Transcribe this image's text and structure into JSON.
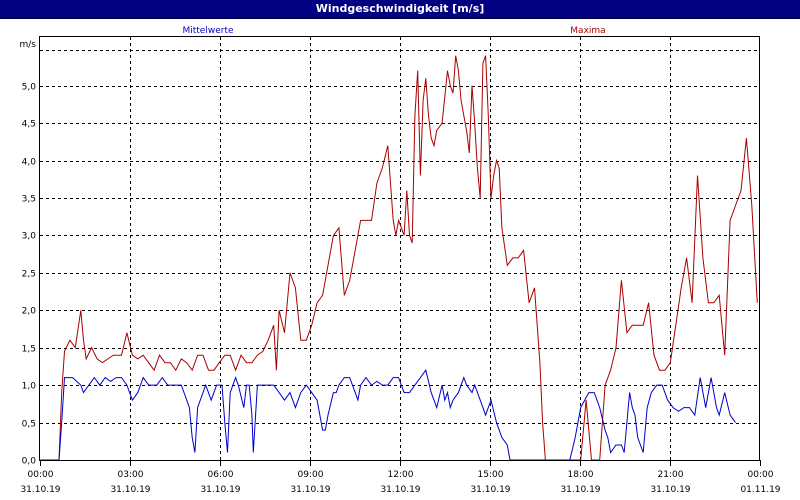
{
  "window": {
    "title": "Windgeschwindigkeit [m/s]"
  },
  "chart_data": {
    "type": "line",
    "title": "Windgeschwindigkeit [m/s]",
    "ylabel": "m/s",
    "xlabel": "",
    "ylim": [
      0,
      5.65
    ],
    "yticks": [
      {
        "v": 0.0,
        "label": "0,0"
      },
      {
        "v": 0.5,
        "label": "0,5"
      },
      {
        "v": 1.0,
        "label": "1,0"
      },
      {
        "v": 1.5,
        "label": "1,5"
      },
      {
        "v": 2.0,
        "label": "2,0"
      },
      {
        "v": 2.5,
        "label": "2,5"
      },
      {
        "v": 3.0,
        "label": "3,0"
      },
      {
        "v": 3.5,
        "label": "3,5"
      },
      {
        "v": 4.0,
        "label": "4,0"
      },
      {
        "v": 4.5,
        "label": "4,5"
      },
      {
        "v": 5.0,
        "label": "5,0"
      }
    ],
    "xlim_hours": [
      0,
      24
    ],
    "xticks": [
      {
        "h": 0,
        "time": "00:00",
        "date": "31.10.19"
      },
      {
        "h": 3,
        "time": "03:00",
        "date": "31.10.19"
      },
      {
        "h": 6,
        "time": "06:00",
        "date": "31.10.19"
      },
      {
        "h": 9,
        "time": "09:00",
        "date": "31.10.19"
      },
      {
        "h": 12,
        "time": "12:00",
        "date": "31.10.19"
      },
      {
        "h": 15,
        "time": "15:00",
        "date": "31.10.19"
      },
      {
        "h": 18,
        "time": "18:00",
        "date": "31.10.19"
      },
      {
        "h": 21,
        "time": "21:00",
        "date": "31.10.19"
      },
      {
        "h": 24,
        "time": "00:00",
        "date": "01.11.19"
      }
    ],
    "grid": true,
    "series": [
      {
        "name": "Mittelwerte",
        "color": "#0000cc",
        "points": [
          [
            0,
            0
          ],
          [
            0.7,
            0
          ],
          [
            0.8,
            0.5
          ],
          [
            0.9,
            1.1
          ],
          [
            1.2,
            1.1
          ],
          [
            1.5,
            1.0
          ],
          [
            1.6,
            0.9
          ],
          [
            1.8,
            1.0
          ],
          [
            2.0,
            1.1
          ],
          [
            2.2,
            1.0
          ],
          [
            2.4,
            1.1
          ],
          [
            2.6,
            1.05
          ],
          [
            2.8,
            1.1
          ],
          [
            3.0,
            1.1
          ],
          [
            3.2,
            1.0
          ],
          [
            3.4,
            0.8
          ],
          [
            3.6,
            0.9
          ],
          [
            3.8,
            1.1
          ],
          [
            4.0,
            1.0
          ],
          [
            4.3,
            1.0
          ],
          [
            4.5,
            1.1
          ],
          [
            4.7,
            1.0
          ],
          [
            5.0,
            1.0
          ],
          [
            5.2,
            1.0
          ],
          [
            5.4,
            0.8
          ],
          [
            5.5,
            0.7
          ],
          [
            5.6,
            0.3
          ],
          [
            5.7,
            0.1
          ],
          [
            5.8,
            0.7
          ],
          [
            6.0,
            0.9
          ],
          [
            6.1,
            1.0
          ],
          [
            6.3,
            0.8
          ],
          [
            6.5,
            1.0
          ],
          [
            6.7,
            1.0
          ],
          [
            6.8,
            0.5
          ],
          [
            6.9,
            0.1
          ],
          [
            7.0,
            0.9
          ],
          [
            7.2,
            1.1
          ],
          [
            7.3,
            1.0
          ],
          [
            7.5,
            0.7
          ],
          [
            7.6,
            1.0
          ],
          [
            7.7,
            1.0
          ],
          [
            7.8,
            0.6
          ],
          [
            7.85,
            0.1
          ],
          [
            8.0,
            1.0
          ],
          [
            8.3,
            1.0
          ],
          [
            8.6,
            1.0
          ],
          [
            8.8,
            0.9
          ],
          [
            9.0,
            0.8
          ],
          [
            9.2,
            0.9
          ],
          [
            9.4,
            0.7
          ],
          [
            9.6,
            0.9
          ],
          [
            9.8,
            1.0
          ],
          [
            10.0,
            0.9
          ],
          [
            10.2,
            0.8
          ],
          [
            10.4,
            0.4
          ],
          [
            10.5,
            0.4
          ],
          [
            10.6,
            0.6
          ],
          [
            10.8,
            0.9
          ],
          [
            10.9,
            0.9
          ],
          [
            11.0,
            1.0
          ],
          [
            11.2,
            1.1
          ],
          [
            11.4,
            1.1
          ],
          [
            11.6,
            0.9
          ],
          [
            11.7,
            0.8
          ],
          [
            11.8,
            1.0
          ],
          [
            12.0,
            1.1
          ],
          [
            12.2,
            1.0
          ],
          [
            12.4,
            1.05
          ],
          [
            12.6,
            1.0
          ],
          [
            12.8,
            1.0
          ],
          [
            13.0,
            1.1
          ],
          [
            13.2,
            1.1
          ],
          [
            13.4,
            0.9
          ],
          [
            13.6,
            0.9
          ],
          [
            13.8,
            1.0
          ],
          [
            14.0,
            1.1
          ],
          [
            14.2,
            1.2
          ],
          [
            14.4,
            0.9
          ],
          [
            14.5,
            0.8
          ],
          [
            14.6,
            0.7
          ],
          [
            14.8,
            1.0
          ],
          [
            14.9,
            0.8
          ],
          [
            15.0,
            0.9
          ],
          [
            15.1,
            0.7
          ],
          [
            15.2,
            0.8
          ],
          [
            15.4,
            0.9
          ],
          [
            15.6,
            1.1
          ],
          [
            15.7,
            1.0
          ],
          [
            15.9,
            0.9
          ],
          [
            16.0,
            1.0
          ],
          [
            16.2,
            0.8
          ],
          [
            16.4,
            0.6
          ],
          [
            16.5,
            0.7
          ],
          [
            16.6,
            0.8
          ],
          [
            16.8,
            0.5
          ],
          [
            17.0,
            0.3
          ],
          [
            17.2,
            0.2
          ],
          [
            17.3,
            0
          ],
          [
            18.0,
            0
          ],
          [
            19.0,
            0
          ],
          [
            19.3,
            0
          ],
          [
            19.5,
            0
          ],
          [
            19.7,
            0.3
          ],
          [
            19.9,
            0.7
          ],
          [
            20.2,
            0.9
          ],
          [
            20.4,
            0.9
          ],
          [
            20.6,
            0.7
          ],
          [
            20.8,
            0.4
          ],
          [
            20.9,
            0.3
          ],
          [
            21.0,
            0.1
          ],
          [
            21.2,
            0.2
          ],
          [
            21.4,
            0.2
          ],
          [
            21.5,
            0.1
          ],
          [
            21.7,
            0.9
          ],
          [
            21.8,
            0.7
          ],
          [
            21.9,
            0.6
          ],
          [
            22.0,
            0.3
          ],
          [
            22.2,
            0.1
          ],
          [
            22.35,
            0.7
          ],
          [
            22.5,
            0.9
          ],
          [
            22.7,
            1.0
          ],
          [
            22.9,
            1.0
          ],
          [
            23.1,
            0.8
          ],
          [
            23.3,
            0.7
          ],
          [
            23.5,
            0.65
          ],
          [
            23.7,
            0.7
          ],
          [
            23.9,
            0.7
          ],
          [
            24.1,
            0.6
          ],
          [
            24.3,
            1.1
          ],
          [
            24.5,
            0.7
          ],
          [
            24.7,
            1.1
          ],
          [
            24.9,
            0.7
          ],
          [
            25.0,
            0.6
          ],
          [
            25.2,
            0.9
          ],
          [
            25.4,
            0.6
          ],
          [
            25.6,
            0.5
          ]
        ]
      },
      {
        "name": "Maxima",
        "color": "#aa0000",
        "points": [
          [
            0,
            0
          ],
          [
            0.7,
            0
          ],
          [
            0.8,
            0.9
          ],
          [
            0.9,
            1.45
          ],
          [
            1.1,
            1.6
          ],
          [
            1.3,
            1.5
          ],
          [
            1.5,
            2.0
          ],
          [
            1.6,
            1.6
          ],
          [
            1.7,
            1.35
          ],
          [
            1.9,
            1.5
          ],
          [
            2.1,
            1.35
          ],
          [
            2.3,
            1.3
          ],
          [
            2.5,
            1.35
          ],
          [
            2.7,
            1.4
          ],
          [
            2.9,
            1.4
          ],
          [
            3.0,
            1.4
          ],
          [
            3.2,
            1.7
          ],
          [
            3.4,
            1.4
          ],
          [
            3.6,
            1.35
          ],
          [
            3.8,
            1.4
          ],
          [
            4.0,
            1.3
          ],
          [
            4.2,
            1.2
          ],
          [
            4.4,
            1.4
          ],
          [
            4.6,
            1.3
          ],
          [
            4.8,
            1.3
          ],
          [
            5.0,
            1.2
          ],
          [
            5.2,
            1.35
          ],
          [
            5.4,
            1.3
          ],
          [
            5.6,
            1.2
          ],
          [
            5.8,
            1.4
          ],
          [
            6.0,
            1.4
          ],
          [
            6.2,
            1.2
          ],
          [
            6.4,
            1.2
          ],
          [
            6.6,
            1.3
          ],
          [
            6.8,
            1.4
          ],
          [
            7.0,
            1.4
          ],
          [
            7.2,
            1.2
          ],
          [
            7.4,
            1.4
          ],
          [
            7.6,
            1.3
          ],
          [
            7.8,
            1.3
          ],
          [
            8.0,
            1.4
          ],
          [
            8.2,
            1.45
          ],
          [
            8.4,
            1.6
          ],
          [
            8.6,
            1.8
          ],
          [
            8.7,
            1.2
          ],
          [
            8.8,
            2.0
          ],
          [
            9.0,
            1.7
          ],
          [
            9.2,
            2.5
          ],
          [
            9.4,
            2.3
          ],
          [
            9.6,
            1.6
          ],
          [
            9.8,
            1.6
          ],
          [
            10.0,
            1.8
          ],
          [
            10.2,
            2.1
          ],
          [
            10.4,
            2.2
          ],
          [
            10.6,
            2.6
          ],
          [
            10.8,
            3.0
          ],
          [
            11.0,
            3.1
          ],
          [
            11.2,
            2.2
          ],
          [
            11.4,
            2.4
          ],
          [
            11.6,
            2.8
          ],
          [
            11.8,
            3.2
          ],
          [
            12.0,
            3.2
          ],
          [
            12.2,
            3.2
          ],
          [
            12.4,
            3.7
          ],
          [
            12.6,
            3.9
          ],
          [
            12.8,
            4.2
          ],
          [
            13.0,
            3.2
          ],
          [
            13.1,
            3.0
          ],
          [
            13.2,
            3.2
          ],
          [
            13.4,
            3.0
          ],
          [
            13.5,
            3.6
          ],
          [
            13.6,
            3.0
          ],
          [
            13.7,
            2.9
          ],
          [
            13.8,
            4.6
          ],
          [
            13.9,
            5.2
          ],
          [
            14.0,
            3.8
          ],
          [
            14.1,
            4.8
          ],
          [
            14.2,
            5.1
          ],
          [
            14.3,
            4.6
          ],
          [
            14.4,
            4.3
          ],
          [
            14.5,
            4.2
          ],
          [
            14.6,
            4.4
          ],
          [
            14.8,
            4.5
          ],
          [
            15.0,
            5.2
          ],
          [
            15.1,
            5.0
          ],
          [
            15.2,
            4.9
          ],
          [
            15.3,
            5.4
          ],
          [
            15.4,
            5.2
          ],
          [
            15.5,
            4.8
          ],
          [
            15.6,
            4.6
          ],
          [
            15.7,
            4.4
          ],
          [
            15.8,
            4.1
          ],
          [
            15.9,
            5.0
          ],
          [
            16.0,
            4.5
          ],
          [
            16.1,
            3.9
          ],
          [
            16.2,
            3.5
          ],
          [
            16.3,
            5.3
          ],
          [
            16.4,
            5.4
          ],
          [
            16.5,
            4.6
          ],
          [
            16.6,
            3.5
          ],
          [
            16.7,
            3.8
          ],
          [
            16.8,
            4.0
          ],
          [
            16.9,
            3.9
          ],
          [
            17.0,
            3.1
          ],
          [
            17.2,
            2.6
          ],
          [
            17.4,
            2.7
          ],
          [
            17.6,
            2.7
          ],
          [
            17.8,
            2.8
          ],
          [
            18.0,
            2.1
          ],
          [
            18.2,
            2.3
          ],
          [
            18.4,
            1.3
          ],
          [
            18.5,
            0.5
          ],
          [
            18.6,
            0
          ],
          [
            19.0,
            0
          ],
          [
            19.5,
            0
          ],
          [
            19.9,
            0
          ],
          [
            20.1,
            0.8
          ],
          [
            20.3,
            0
          ],
          [
            20.4,
            0
          ],
          [
            20.6,
            0
          ],
          [
            20.8,
            1.0
          ],
          [
            21.0,
            1.2
          ],
          [
            21.2,
            1.5
          ],
          [
            21.4,
            2.4
          ],
          [
            21.6,
            1.7
          ],
          [
            21.8,
            1.8
          ],
          [
            22.0,
            1.8
          ],
          [
            22.2,
            1.8
          ],
          [
            22.4,
            2.1
          ],
          [
            22.6,
            1.4
          ],
          [
            22.8,
            1.2
          ],
          [
            23.0,
            1.2
          ],
          [
            23.2,
            1.3
          ],
          [
            23.4,
            1.8
          ],
          [
            23.6,
            2.3
          ],
          [
            23.8,
            2.7
          ],
          [
            24.0,
            2.1
          ],
          [
            24.2,
            3.8
          ],
          [
            24.4,
            2.7
          ],
          [
            24.6,
            2.1
          ],
          [
            24.8,
            2.1
          ],
          [
            25.0,
            2.2
          ],
          [
            25.2,
            1.4
          ],
          [
            25.4,
            3.2
          ],
          [
            25.6,
            3.4
          ],
          [
            25.8,
            3.6
          ],
          [
            26.0,
            4.3
          ],
          [
            26.2,
            3.4
          ],
          [
            26.4,
            2.1
          ]
        ]
      }
    ]
  }
}
